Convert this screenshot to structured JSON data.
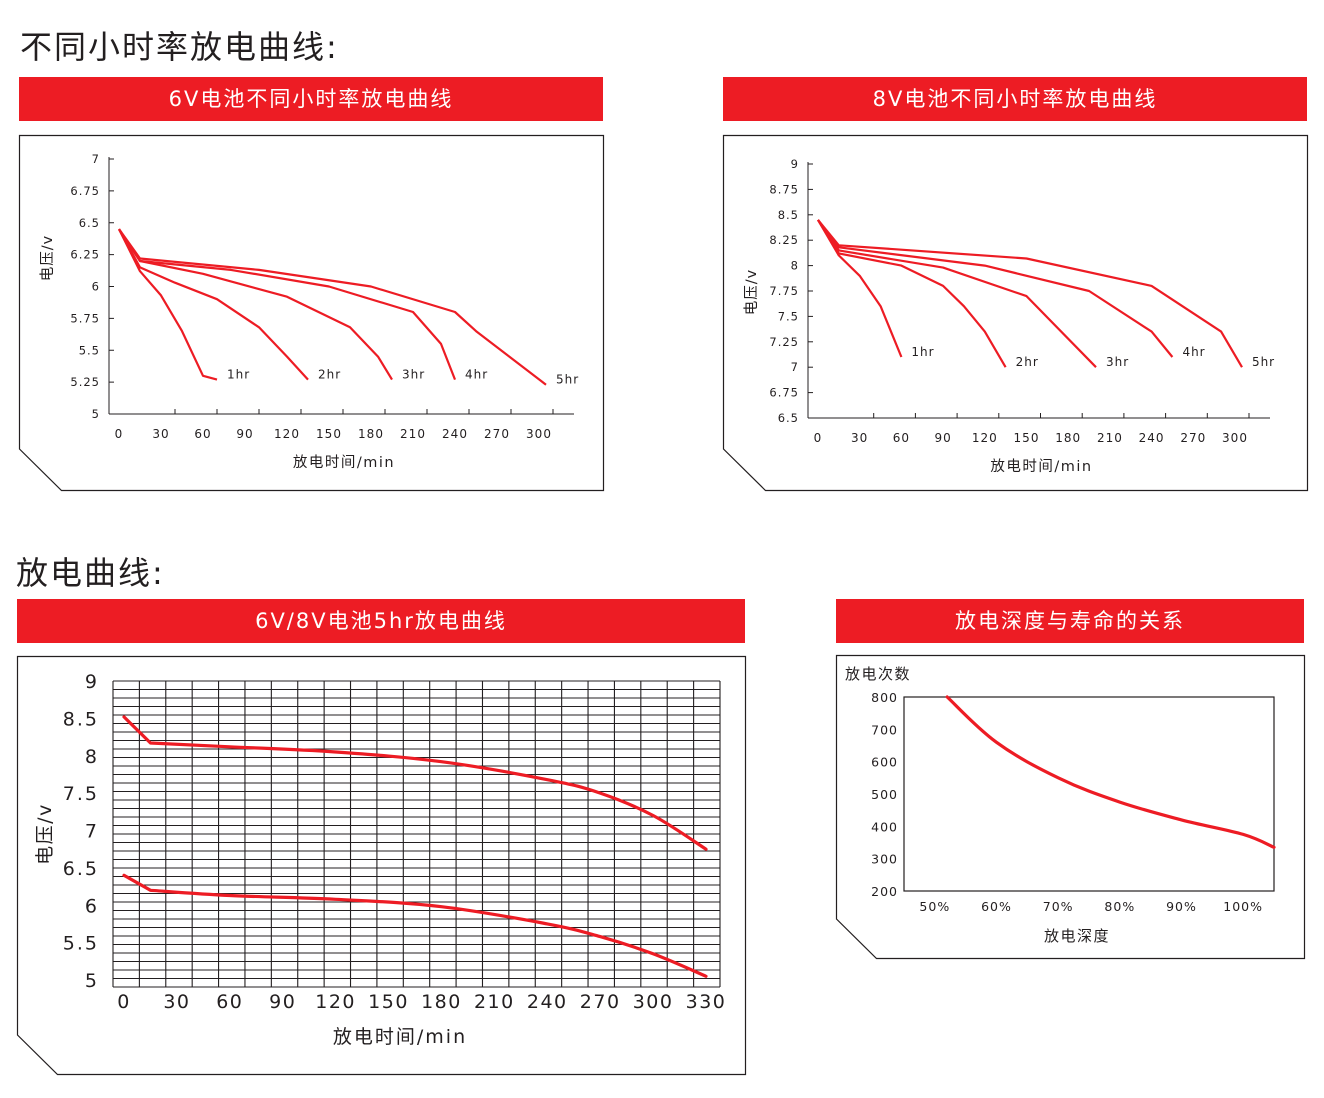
{
  "sections": {
    "top_title": "不同小时率放电曲线:",
    "bottom_title": "放电曲线:"
  },
  "colors": {
    "accent": "#ed1c24",
    "text": "#231f20",
    "frame": "#231f20"
  },
  "chart_data": [
    {
      "type": "line",
      "title": "6V电池不同小时率放电曲线",
      "xlabel": "放电时间/min",
      "ylabel": "电压/v",
      "xlim": [
        0,
        300
      ],
      "ylim": [
        5,
        7
      ],
      "x_ticks": [
        "0",
        "30",
        "60",
        "90",
        "120",
        "150",
        "180",
        "210",
        "240",
        "270",
        "300"
      ],
      "y_ticks": [
        "5",
        "5.25",
        "5.5",
        "5.75",
        "6",
        "6.25",
        "6.5",
        "6.75",
        "7"
      ],
      "grid": false,
      "series": [
        {
          "name": "1hr",
          "label": "1hr",
          "x": [
            0,
            15,
            30,
            45,
            60,
            70
          ],
          "y": [
            6.45,
            6.12,
            5.93,
            5.65,
            5.3,
            5.27
          ]
        },
        {
          "name": "2hr",
          "label": "2hr",
          "x": [
            0,
            15,
            40,
            70,
            100,
            120,
            135
          ],
          "y": [
            6.45,
            6.15,
            6.03,
            5.9,
            5.68,
            5.45,
            5.27
          ]
        },
        {
          "name": "3hr",
          "label": "3hr",
          "x": [
            0,
            15,
            60,
            120,
            165,
            185,
            195
          ],
          "y": [
            6.45,
            6.2,
            6.1,
            5.92,
            5.68,
            5.45,
            5.27
          ]
        },
        {
          "name": "4hr",
          "label": "4hr",
          "x": [
            0,
            15,
            80,
            150,
            210,
            230,
            240
          ],
          "y": [
            6.45,
            6.2,
            6.13,
            6.0,
            5.8,
            5.55,
            5.27
          ]
        },
        {
          "name": "5hr",
          "label": "5hr",
          "x": [
            0,
            15,
            100,
            180,
            240,
            255,
            305
          ],
          "y": [
            6.45,
            6.22,
            6.13,
            6.0,
            5.8,
            5.65,
            5.23
          ]
        }
      ]
    },
    {
      "type": "line",
      "title": "8V电池不同小时率放电曲线",
      "xlabel": "放电时间/min",
      "ylabel": "电压/v",
      "xlim": [
        0,
        300
      ],
      "ylim": [
        6.5,
        9
      ],
      "x_ticks": [
        "0",
        "30",
        "60",
        "90",
        "120",
        "150",
        "180",
        "210",
        "240",
        "270",
        "300"
      ],
      "y_ticks": [
        "6.5",
        "6.75",
        "7",
        "7.25",
        "7.5",
        "7.75",
        "8",
        "8.25",
        "8.5",
        "8.75",
        "9"
      ],
      "grid": false,
      "series": [
        {
          "name": "1hr",
          "label": "1hr",
          "x": [
            0,
            15,
            30,
            45,
            60
          ],
          "y": [
            8.45,
            8.1,
            7.9,
            7.6,
            7.1
          ]
        },
        {
          "name": "2hr",
          "label": "2hr",
          "x": [
            0,
            15,
            60,
            90,
            105,
            120,
            135
          ],
          "y": [
            8.45,
            8.12,
            8.0,
            7.8,
            7.6,
            7.35,
            7.0
          ]
        },
        {
          "name": "3hr",
          "label": "3hr",
          "x": [
            0,
            15,
            90,
            150,
            200
          ],
          "y": [
            8.45,
            8.15,
            7.98,
            7.7,
            7.0
          ]
        },
        {
          "name": "4hr",
          "label": "4hr",
          "x": [
            0,
            15,
            120,
            195,
            240,
            255
          ],
          "y": [
            8.45,
            8.18,
            8.0,
            7.75,
            7.35,
            7.1
          ]
        },
        {
          "name": "5hr",
          "label": "5hr",
          "x": [
            0,
            15,
            150,
            240,
            290,
            305
          ],
          "y": [
            8.45,
            8.2,
            8.07,
            7.8,
            7.35,
            7.0
          ]
        }
      ]
    },
    {
      "type": "line",
      "title": "6V/8V电池5hr放电曲线",
      "xlabel": "放电时间/min",
      "ylabel": "电压/v",
      "xlim": [
        0,
        330
      ],
      "ylim": [
        5,
        9
      ],
      "x_ticks": [
        "0",
        "30",
        "60",
        "90",
        "120",
        "150",
        "180",
        "210",
        "240",
        "270",
        "300",
        "330"
      ],
      "y_ticks": [
        "5",
        "5.5",
        "6",
        "6.5",
        "7",
        "7.5",
        "8",
        "8.5",
        "9"
      ],
      "grid": true,
      "series": [
        {
          "x": [
            0,
            15,
            60,
            120,
            180,
            240,
            270,
            300,
            330
          ],
          "y": [
            8.52,
            8.17,
            8.12,
            8.05,
            7.92,
            7.68,
            7.5,
            7.2,
            6.75
          ]
        },
        {
          "x": [
            0,
            15,
            60,
            120,
            180,
            240,
            270,
            300,
            330
          ],
          "y": [
            6.4,
            6.2,
            6.13,
            6.08,
            5.98,
            5.75,
            5.58,
            5.35,
            5.05
          ]
        }
      ]
    },
    {
      "type": "line",
      "title": "放电深度与寿命的关系",
      "xlabel": "放电深度",
      "ylabel": "放电次数",
      "xlim": [
        45,
        105
      ],
      "ylim": [
        200,
        800
      ],
      "x_ticks": [
        "50%",
        "60%",
        "70%",
        "80%",
        "90%",
        "100%"
      ],
      "y_ticks": [
        "200",
        "300",
        "400",
        "500",
        "600",
        "700",
        "800"
      ],
      "grid": false,
      "series": [
        {
          "x": [
            52,
            60,
            70,
            80,
            90,
            100,
            105
          ],
          "y": [
            800,
            660,
            550,
            475,
            420,
            375,
            335
          ]
        }
      ]
    }
  ]
}
